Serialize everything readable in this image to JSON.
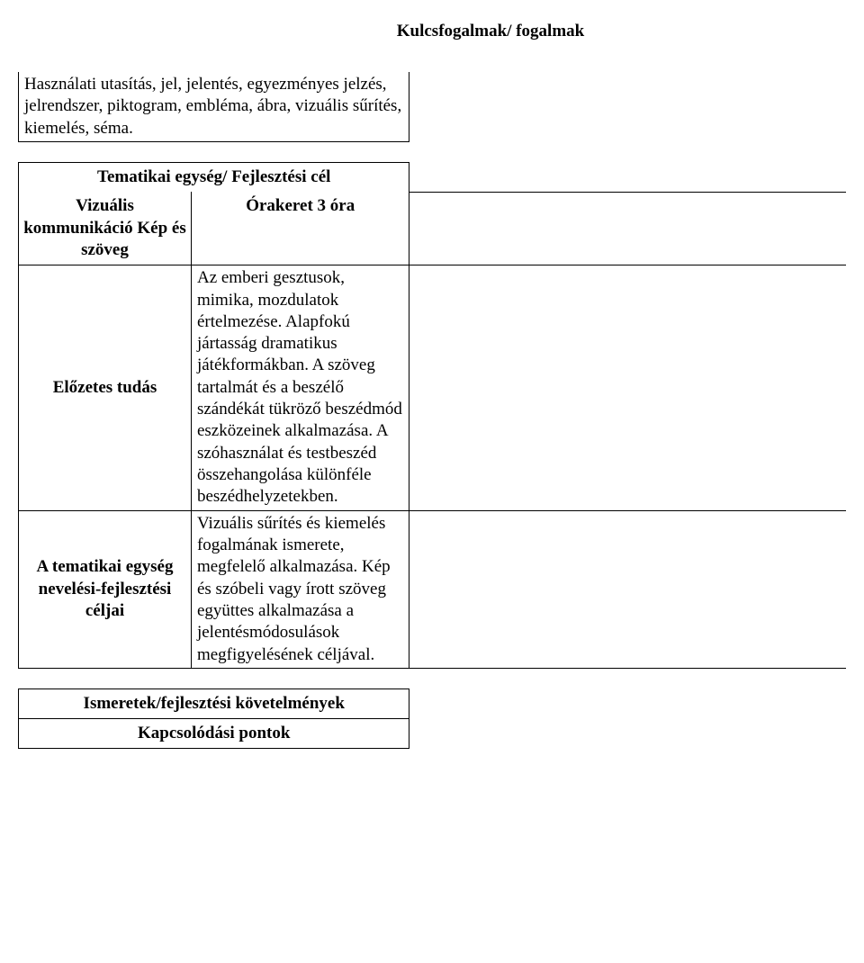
{
  "title": "Kulcsfogalmak/ fogalmak",
  "intro": "Használati utasítás, jel, jelentés, egyezményes jelzés, jelrendszer, piktogram, embléma, ábra, vizuális sűrítés, kiemelés, séma.",
  "unit": {
    "heading_l": "Tematikai egység/ Fejlesztési cél",
    "heading_r_1": "Vizuális kommunikáció Kép és szöveg",
    "heading_r_2": "Órakeret 3 óra",
    "row_prev_label": "Előzetes tudás",
    "row_prev_text": "Az emberi gesztusok, mimika, mozdulatok értelmezése. Alapfokú jártasság dramatikus játékformákban. A szöveg tartalmát és a beszélő szándékát tükröző beszédmód eszközeinek alkalmazása. A szóhasználat és testbeszéd összehangolása különféle beszédhelyzetekben.",
    "row_goals_label": "A tematikai egység nevelési-fejlesztési céljai",
    "row_goals_text": "Vizuális sűrítés és kiemelés fogalmának ismerete, megfelelő alkalmazása. Kép és szóbeli vagy írott szöveg együttes alkalmazása a jelentésmódosulások megfigyelésének céljával."
  },
  "footer": {
    "req": "Ismeretek/fejlesztési követelmények",
    "kapcs": "Kapcsolódási pontok"
  }
}
